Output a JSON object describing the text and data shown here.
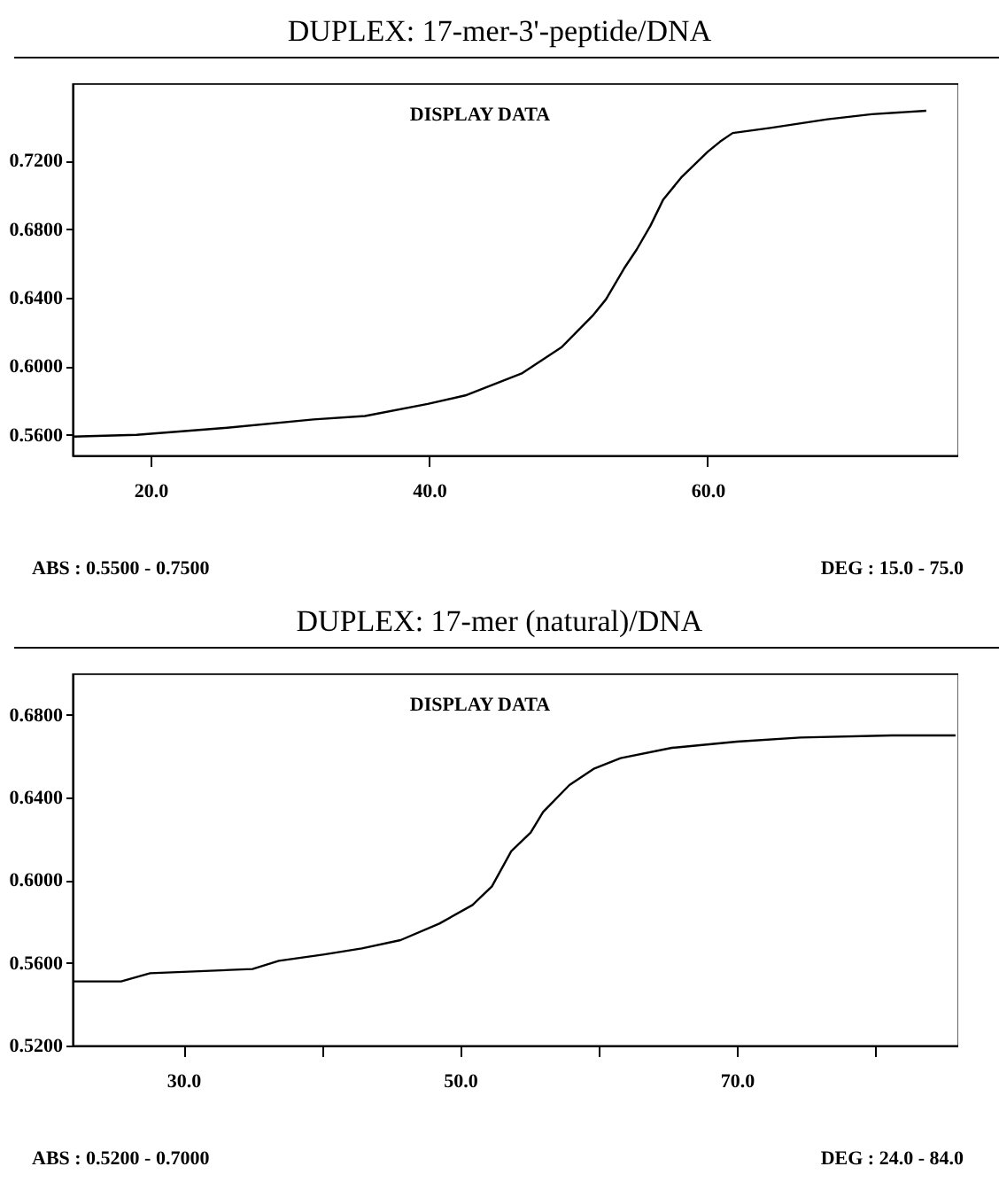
{
  "chart_data": [
    {
      "type": "line",
      "title": "DUPLEX: 17-mer-3'-peptide/DNA",
      "annotations": [
        "DISPLAY DATA",
        "ABS : 0.5500 - 0.7500",
        "DEG : 15.0 - 75.0"
      ],
      "xlim": [
        14.4,
        78
      ],
      "ylim": [
        0.548,
        0.765
      ],
      "xticks": [
        {
          "value": 20,
          "label": "20.0"
        },
        {
          "value": 40,
          "label": "40.0"
        },
        {
          "value": 60,
          "label": "60.0"
        }
      ],
      "yticks": [
        {
          "value": 0.56,
          "label": "0.5600"
        },
        {
          "value": 0.6,
          "label": "0.6000"
        },
        {
          "value": 0.64,
          "label": "0.6400"
        },
        {
          "value": 0.68,
          "label": "0.6800"
        },
        {
          "value": 0.72,
          "label": "0.7200"
        }
      ],
      "marker": "none",
      "line_style": "solid",
      "series": [
        {
          "color": "#000000",
          "x": [
            14.4,
            19.0,
            25.3,
            31.7,
            35.4,
            39.9,
            42.6,
            46.7,
            49.5,
            51.8,
            52.7,
            54.0,
            54.9,
            55.9,
            56.8,
            58.1,
            60.0,
            60.9,
            61.8,
            64.5,
            68.6,
            71.8,
            75.7
          ],
          "values": [
            0.559,
            0.56,
            0.564,
            0.569,
            0.571,
            0.578,
            0.583,
            0.596,
            0.611,
            0.63,
            0.639,
            0.657,
            0.668,
            0.682,
            0.697,
            0.71,
            0.725,
            0.731,
            0.736,
            0.739,
            0.744,
            0.747,
            0.749
          ]
        }
      ]
    },
    {
      "type": "line",
      "title": "DUPLEX: 17-mer (natural)/DNA",
      "annotations": [
        "DISPLAY DATA",
        "ABS : 0.5200 - 0.7000",
        "DEG : 24.0 - 84.0"
      ],
      "xlim": [
        22,
        86
      ],
      "ylim": [
        0.52,
        0.7
      ],
      "xticks": [
        {
          "value": 30,
          "label": "30.0"
        },
        {
          "value": 40,
          "label": null
        },
        {
          "value": 50,
          "label": "50.0"
        },
        {
          "value": 60,
          "label": null
        },
        {
          "value": 70,
          "label": "70.0"
        },
        {
          "value": 80,
          "label": null
        }
      ],
      "yticks": [
        {
          "value": 0.52,
          "label": "0.5200"
        },
        {
          "value": 0.56,
          "label": "0.5600"
        },
        {
          "value": 0.6,
          "label": "0.6000"
        },
        {
          "value": 0.64,
          "label": "0.6400"
        },
        {
          "value": 0.68,
          "label": "0.6800"
        }
      ],
      "marker": "none",
      "line_style": "solid",
      "series": [
        {
          "color": "#000000",
          "x": [
            22.0,
            25.5,
            27.6,
            35.0,
            36.9,
            40.1,
            42.9,
            45.7,
            48.5,
            50.9,
            52.3,
            53.7,
            55.1,
            56.0,
            57.9,
            59.7,
            61.6,
            65.3,
            70.0,
            74.6,
            81.2,
            85.8
          ],
          "values": [
            0.551,
            0.551,
            0.555,
            0.557,
            0.561,
            0.564,
            0.567,
            0.571,
            0.579,
            0.588,
            0.597,
            0.614,
            0.623,
            0.633,
            0.646,
            0.654,
            0.659,
            0.664,
            0.667,
            0.669,
            0.67,
            0.67
          ]
        }
      ]
    }
  ]
}
